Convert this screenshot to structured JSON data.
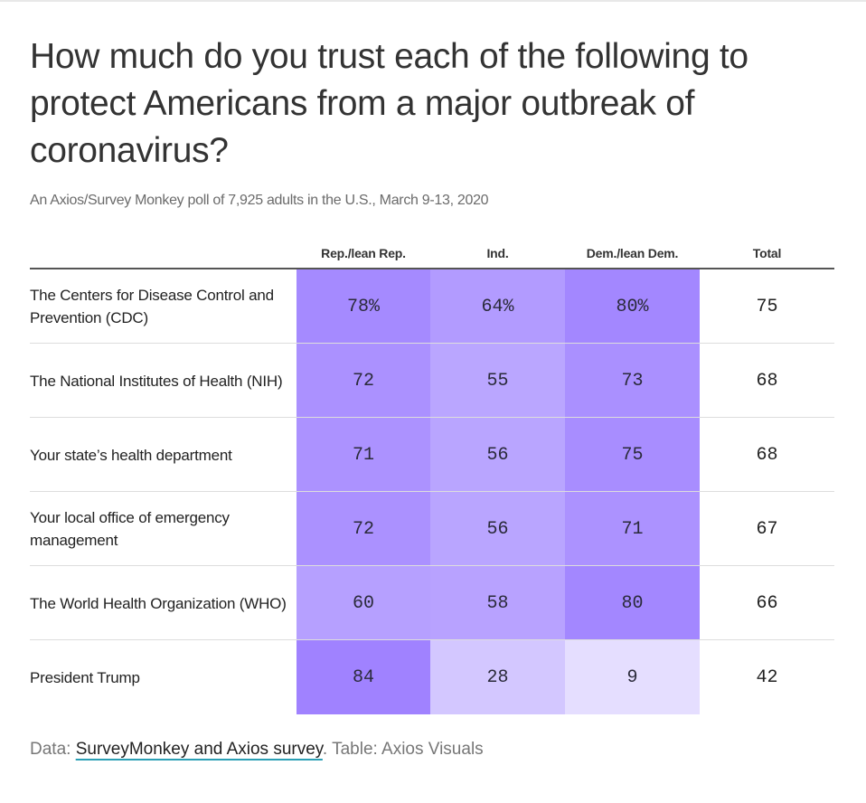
{
  "title": "How much do you trust each of the following to protect Americans from a major outbreak of coronavirus?",
  "subtitle": "An Axios/Survey Monkey poll of 7,925 adults in the U.S., March 9-13, 2020",
  "footer": {
    "prefix": "Data: ",
    "link_text": "SurveyMonkey and Axios survey",
    "suffix": ". Table: Axios Visuals"
  },
  "colors": {
    "heat_low": "#ede9ff",
    "heat_high": "#9a7bff",
    "link_underline": "#2a9fb5"
  },
  "chart_data": {
    "type": "heatmap",
    "columns": [
      "Rep./lean Rep.",
      "Ind.",
      "Dem./lean Dem.",
      "Total"
    ],
    "rows": [
      {
        "label": "The Centers for Disease Control and Prevention (CDC)",
        "values": [
          78,
          64,
          80,
          75
        ],
        "display": [
          "78%",
          "64%",
          "80%",
          "75"
        ]
      },
      {
        "label": "The National Institutes of Health (NIH)",
        "values": [
          72,
          55,
          73,
          68
        ],
        "display": [
          "72",
          "55",
          "73",
          "68"
        ]
      },
      {
        "label": "Your state’s health department",
        "values": [
          71,
          56,
          75,
          68
        ],
        "display": [
          "71",
          "56",
          "75",
          "68"
        ]
      },
      {
        "label": "Your local office of emergency management",
        "values": [
          72,
          56,
          71,
          67
        ],
        "display": [
          "72",
          "56",
          "71",
          "67"
        ]
      },
      {
        "label": "The World Health Organization (WHO)",
        "values": [
          60,
          58,
          80,
          66
        ],
        "display": [
          "60",
          "58",
          "80",
          "66"
        ]
      },
      {
        "label": "President Trump",
        "values": [
          84,
          28,
          9,
          42
        ],
        "display": [
          "84",
          "28",
          "9",
          "42"
        ]
      }
    ],
    "heat_range": [
      0,
      90
    ],
    "heat_columns": [
      0,
      1,
      2
    ]
  }
}
